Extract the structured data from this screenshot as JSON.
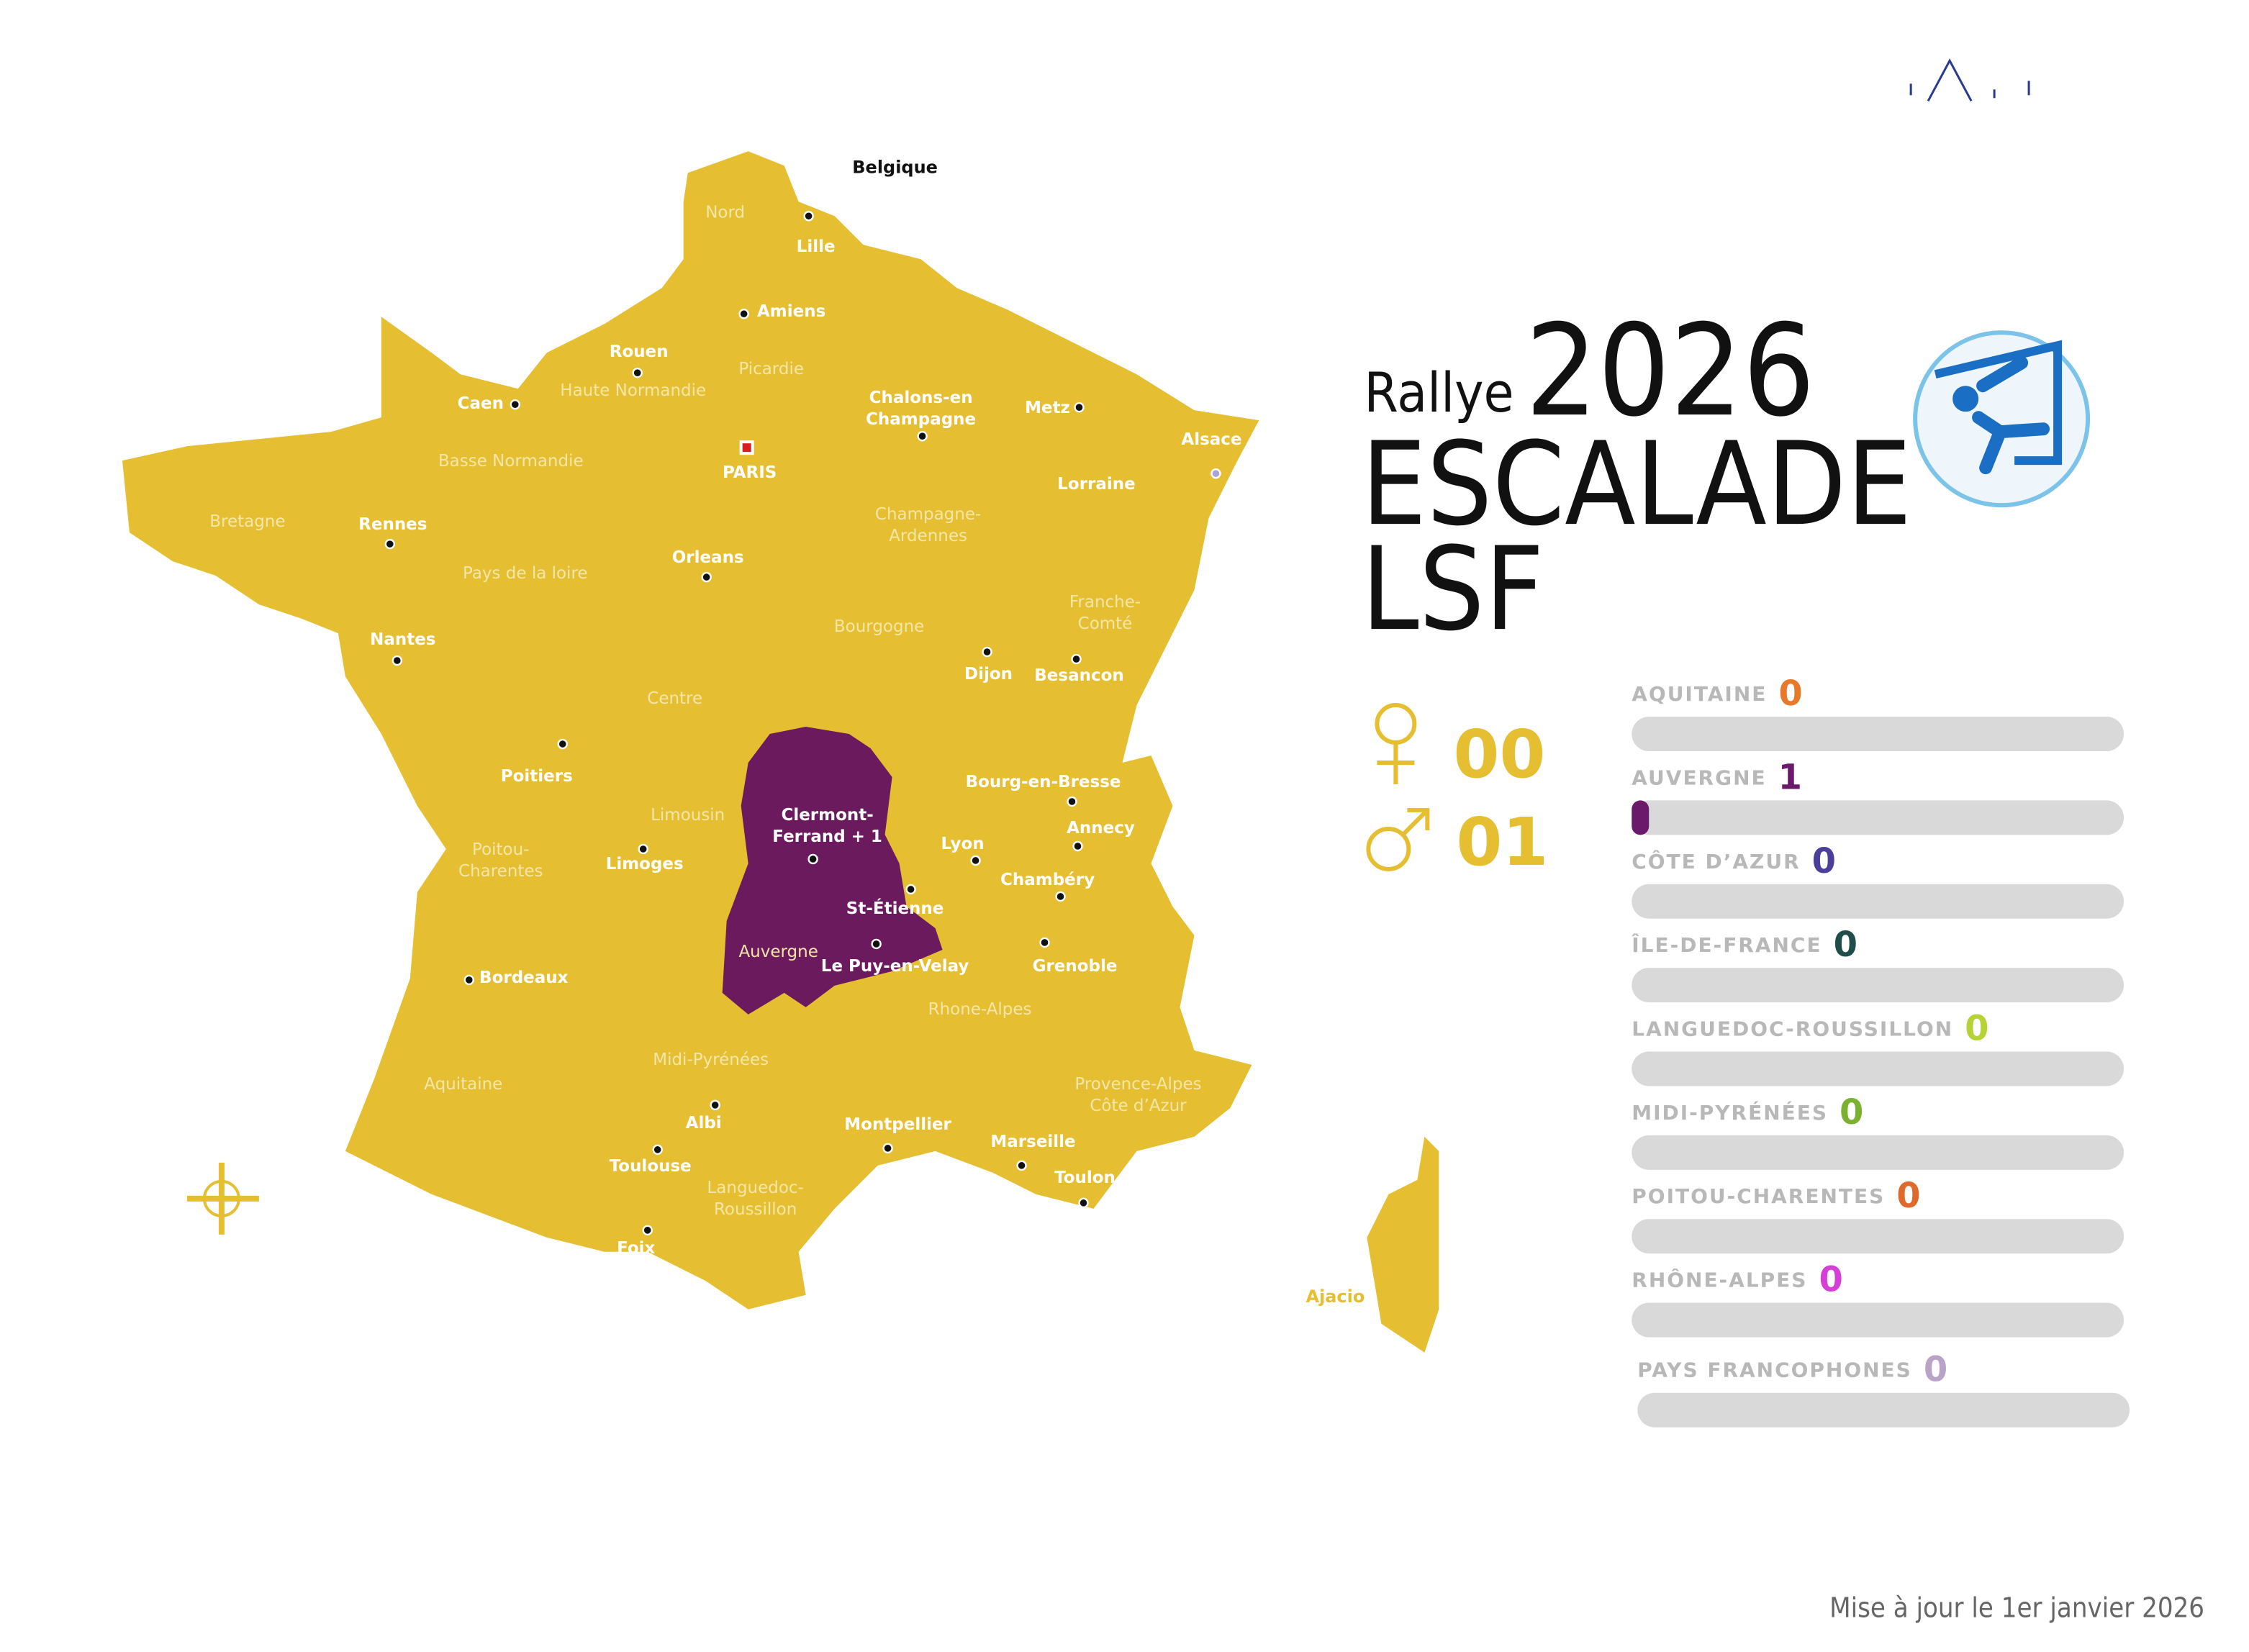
{
  "header": {
    "title_prefix": "Rallye",
    "title_year": "2026",
    "title_line2": "ESCALADE",
    "title_line3": "LSF"
  },
  "counts": {
    "female": "00",
    "male": "01"
  },
  "map": {
    "country_label": "Belgique",
    "island_city": "Ajacio",
    "cities": [
      [
        "Lille"
      ],
      [
        "Amiens"
      ],
      [
        "Rouen"
      ],
      [
        "Caen"
      ],
      [
        "PARIS"
      ],
      [
        "Chalons-en",
        "Champagne"
      ],
      [
        "Metz"
      ],
      [
        "Alsace"
      ],
      [
        "Lorraine"
      ],
      [
        "Rennes"
      ],
      [
        "Orleans"
      ],
      [
        "Nantes"
      ],
      [
        "Dijon"
      ],
      [
        "Besancon"
      ],
      [
        "Poitiers"
      ],
      [
        "Bourg-en-Bresse"
      ],
      [
        "Clermont-",
        "Ferrand + 1"
      ],
      [
        "Annecy"
      ],
      [
        "Lyon"
      ],
      [
        "Limoges"
      ],
      [
        "Chambéry"
      ],
      [
        "St-Étienne"
      ],
      [
        "Grenoble"
      ],
      [
        "Le Puy-en-Velay"
      ],
      [
        "Bordeaux"
      ],
      [
        "Albi"
      ],
      [
        "Montpellier"
      ],
      [
        "Marseille"
      ],
      [
        "Toulouse"
      ],
      [
        "Toulon"
      ],
      [
        "Foix"
      ]
    ],
    "regions": [
      [
        "Nord"
      ],
      [
        "Picardie"
      ],
      [
        "Haute Normandie"
      ],
      [
        "Basse Normandie"
      ],
      [
        "Bretagne"
      ],
      [
        "Pays de la loire"
      ],
      [
        "Champagne-",
        "Ardennes"
      ],
      [
        "Franche-",
        "Comté"
      ],
      [
        "Bourgogne"
      ],
      [
        "Centre"
      ],
      [
        "Limousin"
      ],
      [
        "Poitou-",
        "Charentes"
      ],
      [
        "Auvergne"
      ],
      [
        "Rhone-Alpes"
      ],
      [
        "Midi-Pyrénées"
      ],
      [
        "Aquitaine"
      ],
      [
        "Provence-Alpes",
        "Côte d’Azur"
      ],
      [
        "Languedoc-",
        "Roussillon"
      ]
    ]
  },
  "tally": [
    {
      "name": "AQUITAINE",
      "count": 0,
      "color": "#e8792b"
    },
    {
      "name": "AUVERGNE",
      "count": 1,
      "color": "#6b1a6b"
    },
    {
      "name": "CÔTE D’AZUR",
      "count": 0,
      "color": "#4a3f9a"
    },
    {
      "name": "ÎLE-DE-FRANCE",
      "count": 0,
      "color": "#1f4d4a"
    },
    {
      "name": "LANGUEDOC-ROUSSILLON",
      "count": 0,
      "color": "#b5d334"
    },
    {
      "name": "MIDI-PYRÉNÉES",
      "count": 0,
      "color": "#7bb030"
    },
    {
      "name": "POITOU-CHARENTES",
      "count": 0,
      "color": "#e0692c"
    },
    {
      "name": "RHÔNE-ALPES",
      "count": 0,
      "color": "#d63fd6"
    },
    {
      "name": "PAYS  FRANCOPHONES",
      "count": 0,
      "color": "#b9a3c7"
    }
  ],
  "footer": "Mise à jour le 1er janvier 2026"
}
